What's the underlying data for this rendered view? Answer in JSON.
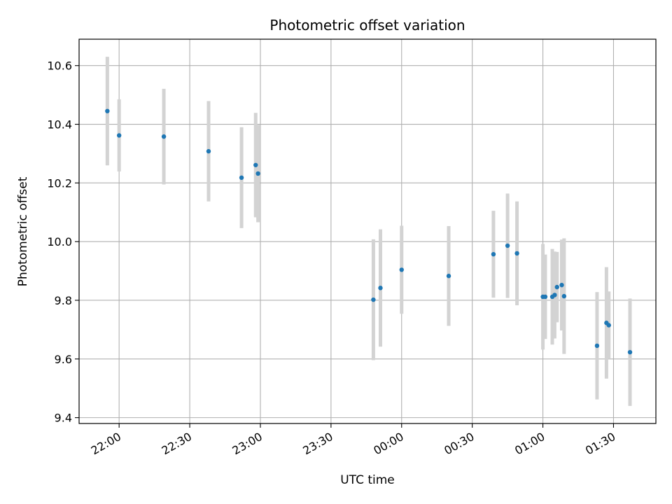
{
  "chart_data": {
    "type": "scatter",
    "title": "Photometric offset variation",
    "xlabel": "UTC time",
    "ylabel": "Photometric offset",
    "grid": true,
    "x_tick_labels": [
      "22:00",
      "22:30",
      "23:00",
      "23:30",
      "00:00",
      "00:30",
      "01:00",
      "01:30"
    ],
    "y_tick_labels": [
      "9.4",
      "9.6",
      "9.8",
      "10.0",
      "10.2",
      "10.4",
      "10.6"
    ],
    "y_ticks": [
      9.4,
      9.6,
      9.8,
      10.0,
      10.2,
      10.4,
      10.6
    ],
    "ylim": [
      9.38,
      10.69
    ],
    "x_time_range": [
      "21:43",
      "01:48"
    ],
    "colors": {
      "point": "#1f77b4",
      "errorbar": "#d3d3d3",
      "grid": "#b0b0b0"
    },
    "points": [
      {
        "time": "21:55",
        "y": 10.445,
        "err": 0.185
      },
      {
        "time": "22:00",
        "y": 10.362,
        "err": 0.123
      },
      {
        "time": "22:19",
        "y": 10.358,
        "err": 0.163
      },
      {
        "time": "22:38",
        "y": 10.308,
        "err": 0.171
      },
      {
        "time": "22:52",
        "y": 10.218,
        "err": 0.172
      },
      {
        "time": "22:58",
        "y": 10.261,
        "err": 0.178
      },
      {
        "time": "22:59",
        "y": 10.232,
        "err": 0.166
      },
      {
        "time": "23:48",
        "y": 9.802,
        "err": 0.206
      },
      {
        "time": "23:51",
        "y": 9.842,
        "err": 0.2
      },
      {
        "time": "00:00",
        "y": 9.904,
        "err": 0.15
      },
      {
        "time": "00:20",
        "y": 9.883,
        "err": 0.17
      },
      {
        "time": "00:39",
        "y": 9.957,
        "err": 0.148
      },
      {
        "time": "00:45",
        "y": 9.986,
        "err": 0.178
      },
      {
        "time": "00:49",
        "y": 9.96,
        "err": 0.177
      },
      {
        "time": "01:00",
        "y": 9.812,
        "err": 0.18
      },
      {
        "time": "01:01",
        "y": 9.812,
        "err": 0.144
      },
      {
        "time": "01:04",
        "y": 9.812,
        "err": 0.163
      },
      {
        "time": "01:05",
        "y": 9.818,
        "err": 0.148
      },
      {
        "time": "01:06",
        "y": 9.845,
        "err": 0.12
      },
      {
        "time": "01:08",
        "y": 9.852,
        "err": 0.155
      },
      {
        "time": "01:09",
        "y": 9.814,
        "err": 0.197
      },
      {
        "time": "01:23",
        "y": 9.645,
        "err": 0.183
      },
      {
        "time": "01:27",
        "y": 9.723,
        "err": 0.19
      },
      {
        "time": "01:28",
        "y": 9.715,
        "err": 0.115
      },
      {
        "time": "01:37",
        "y": 9.623,
        "err": 0.183
      }
    ]
  }
}
